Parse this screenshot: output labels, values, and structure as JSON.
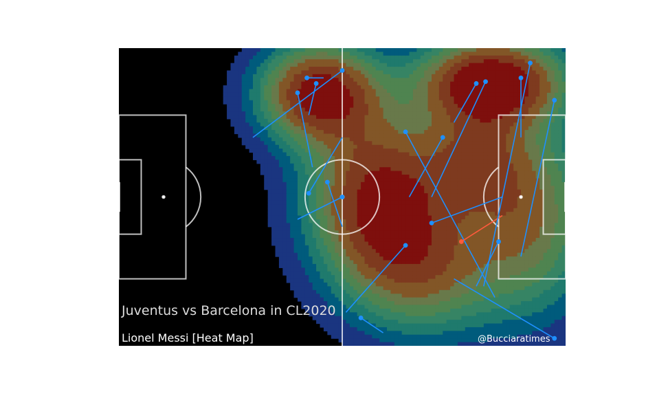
{
  "chart_data": {
    "type": "heatmap",
    "title": "Juventus vs Barcelona in CL2020",
    "subtitle": "Lionel Messi [Heat Map]",
    "credit": "@Bucciaratimes",
    "pitch": {
      "length": 120,
      "width": 80,
      "background": "#000000",
      "line_color": "#ffffff"
    },
    "xlim": [
      0,
      120
    ],
    "ylim": [
      0,
      80
    ],
    "colormap": [
      "#1a3580",
      "#005b7c",
      "#1f7a6d",
      "#368464",
      "#4f8450",
      "#68794a",
      "#825627",
      "#7e3a1f",
      "#7e0f0d"
    ],
    "density_peaks": [
      {
        "x": 54,
        "y": 12,
        "sx": 11,
        "sy": 9,
        "w": 0.9
      },
      {
        "x": 100,
        "y": 9,
        "sx": 13,
        "sy": 8,
        "w": 1.0
      },
      {
        "x": 70,
        "y": 40,
        "sx": 13,
        "sy": 15,
        "w": 0.85
      },
      {
        "x": 110,
        "y": 45,
        "sx": 12,
        "sy": 18,
        "w": 0.55
      },
      {
        "x": 82,
        "y": 60,
        "sx": 14,
        "sy": 12,
        "w": 0.5
      },
      {
        "x": 95,
        "y": 30,
        "sx": 10,
        "sy": 10,
        "w": 0.45
      }
    ],
    "passes_color": "#1e90ff",
    "highlight_color": "#ff5a3c",
    "passes": [
      {
        "x": 60,
        "y": 6,
        "end_x": 36,
        "end_y": 24,
        "highlight": false
      },
      {
        "x": 50.5,
        "y": 8,
        "end_x": 55,
        "end_y": 8,
        "highlight": false
      },
      {
        "x": 48,
        "y": 12,
        "end_x": 52,
        "end_y": 32,
        "highlight": false
      },
      {
        "x": 53,
        "y": 9.5,
        "end_x": 51,
        "end_y": 18,
        "highlight": false
      },
      {
        "x": 51,
        "y": 39,
        "end_x": 60,
        "end_y": 24,
        "highlight": false
      },
      {
        "x": 56,
        "y": 36,
        "end_x": 60,
        "end_y": 48,
        "highlight": false
      },
      {
        "x": 60,
        "y": 40,
        "end_x": 48,
        "end_y": 46,
        "highlight": false
      },
      {
        "x": 77,
        "y": 22.5,
        "end_x": 101,
        "end_y": 67,
        "highlight": false
      },
      {
        "x": 87,
        "y": 24,
        "end_x": 78,
        "end_y": 40,
        "highlight": false
      },
      {
        "x": 77,
        "y": 53,
        "end_x": 61,
        "end_y": 71,
        "highlight": false
      },
      {
        "x": 65,
        "y": 72.5,
        "end_x": 71,
        "end_y": 76.5,
        "highlight": false
      },
      {
        "x": 84,
        "y": 47,
        "end_x": 103,
        "end_y": 40,
        "highlight": false
      },
      {
        "x": 92,
        "y": 52,
        "end_x": 103,
        "end_y": 45,
        "highlight": true
      },
      {
        "x": 96,
        "y": 9.5,
        "end_x": 90,
        "end_y": 20,
        "highlight": false
      },
      {
        "x": 98.5,
        "y": 9,
        "end_x": 84,
        "end_y": 40,
        "highlight": false
      },
      {
        "x": 108,
        "y": 8,
        "end_x": 108,
        "end_y": 24,
        "highlight": false
      },
      {
        "x": 110.5,
        "y": 4,
        "end_x": 98,
        "end_y": 64,
        "highlight": false
      },
      {
        "x": 117,
        "y": 14,
        "end_x": 108,
        "end_y": 56,
        "highlight": false
      },
      {
        "x": 102,
        "y": 52,
        "end_x": 96,
        "end_y": 64,
        "highlight": false
      },
      {
        "x": 117,
        "y": 78,
        "end_x": 90,
        "end_y": 62,
        "highlight": false
      }
    ]
  }
}
